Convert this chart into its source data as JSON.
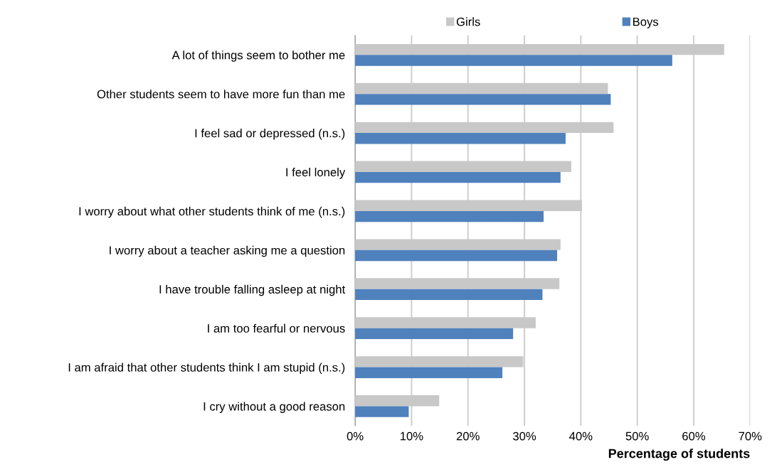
{
  "chart_data": {
    "type": "bar",
    "orientation": "horizontal",
    "xlabel": "Percentage of students",
    "categories": [
      "A lot of things seem to bother me",
      "Other students seem to have more fun than me",
      "I feel sad or depressed (n.s.)",
      "I feel lonely",
      "I worry about what other students think of me (n.s.)",
      "I worry about a teacher asking me a question",
      "I have trouble falling asleep at night",
      "I am too fearful or nervous",
      "I am afraid that other students think I am stupid (n.s.)",
      "I cry without a good reason"
    ],
    "series": [
      {
        "name": "Girls",
        "color": "#c8c8c8",
        "values": [
          65.4,
          44.8,
          45.8,
          38.3,
          40.2,
          36.4,
          36.2,
          32.0,
          29.8,
          14.9
        ]
      },
      {
        "name": "Boys",
        "color": "#4f81bd",
        "values": [
          56.2,
          45.3,
          37.3,
          36.4,
          33.4,
          35.8,
          33.2,
          28.0,
          26.1,
          9.5
        ]
      }
    ],
    "xlim": [
      0,
      70
    ],
    "xticks": [
      {
        "value": 0,
        "label": "0%"
      },
      {
        "value": 10,
        "label": "10%"
      },
      {
        "value": 20,
        "label": "20%"
      },
      {
        "value": 30,
        "label": "30%"
      },
      {
        "value": 40,
        "label": "40%"
      },
      {
        "value": 50,
        "label": "50%"
      },
      {
        "value": 60,
        "label": "60%"
      },
      {
        "value": 70,
        "label": "70%"
      }
    ],
    "grid": "x",
    "legend": "top"
  }
}
